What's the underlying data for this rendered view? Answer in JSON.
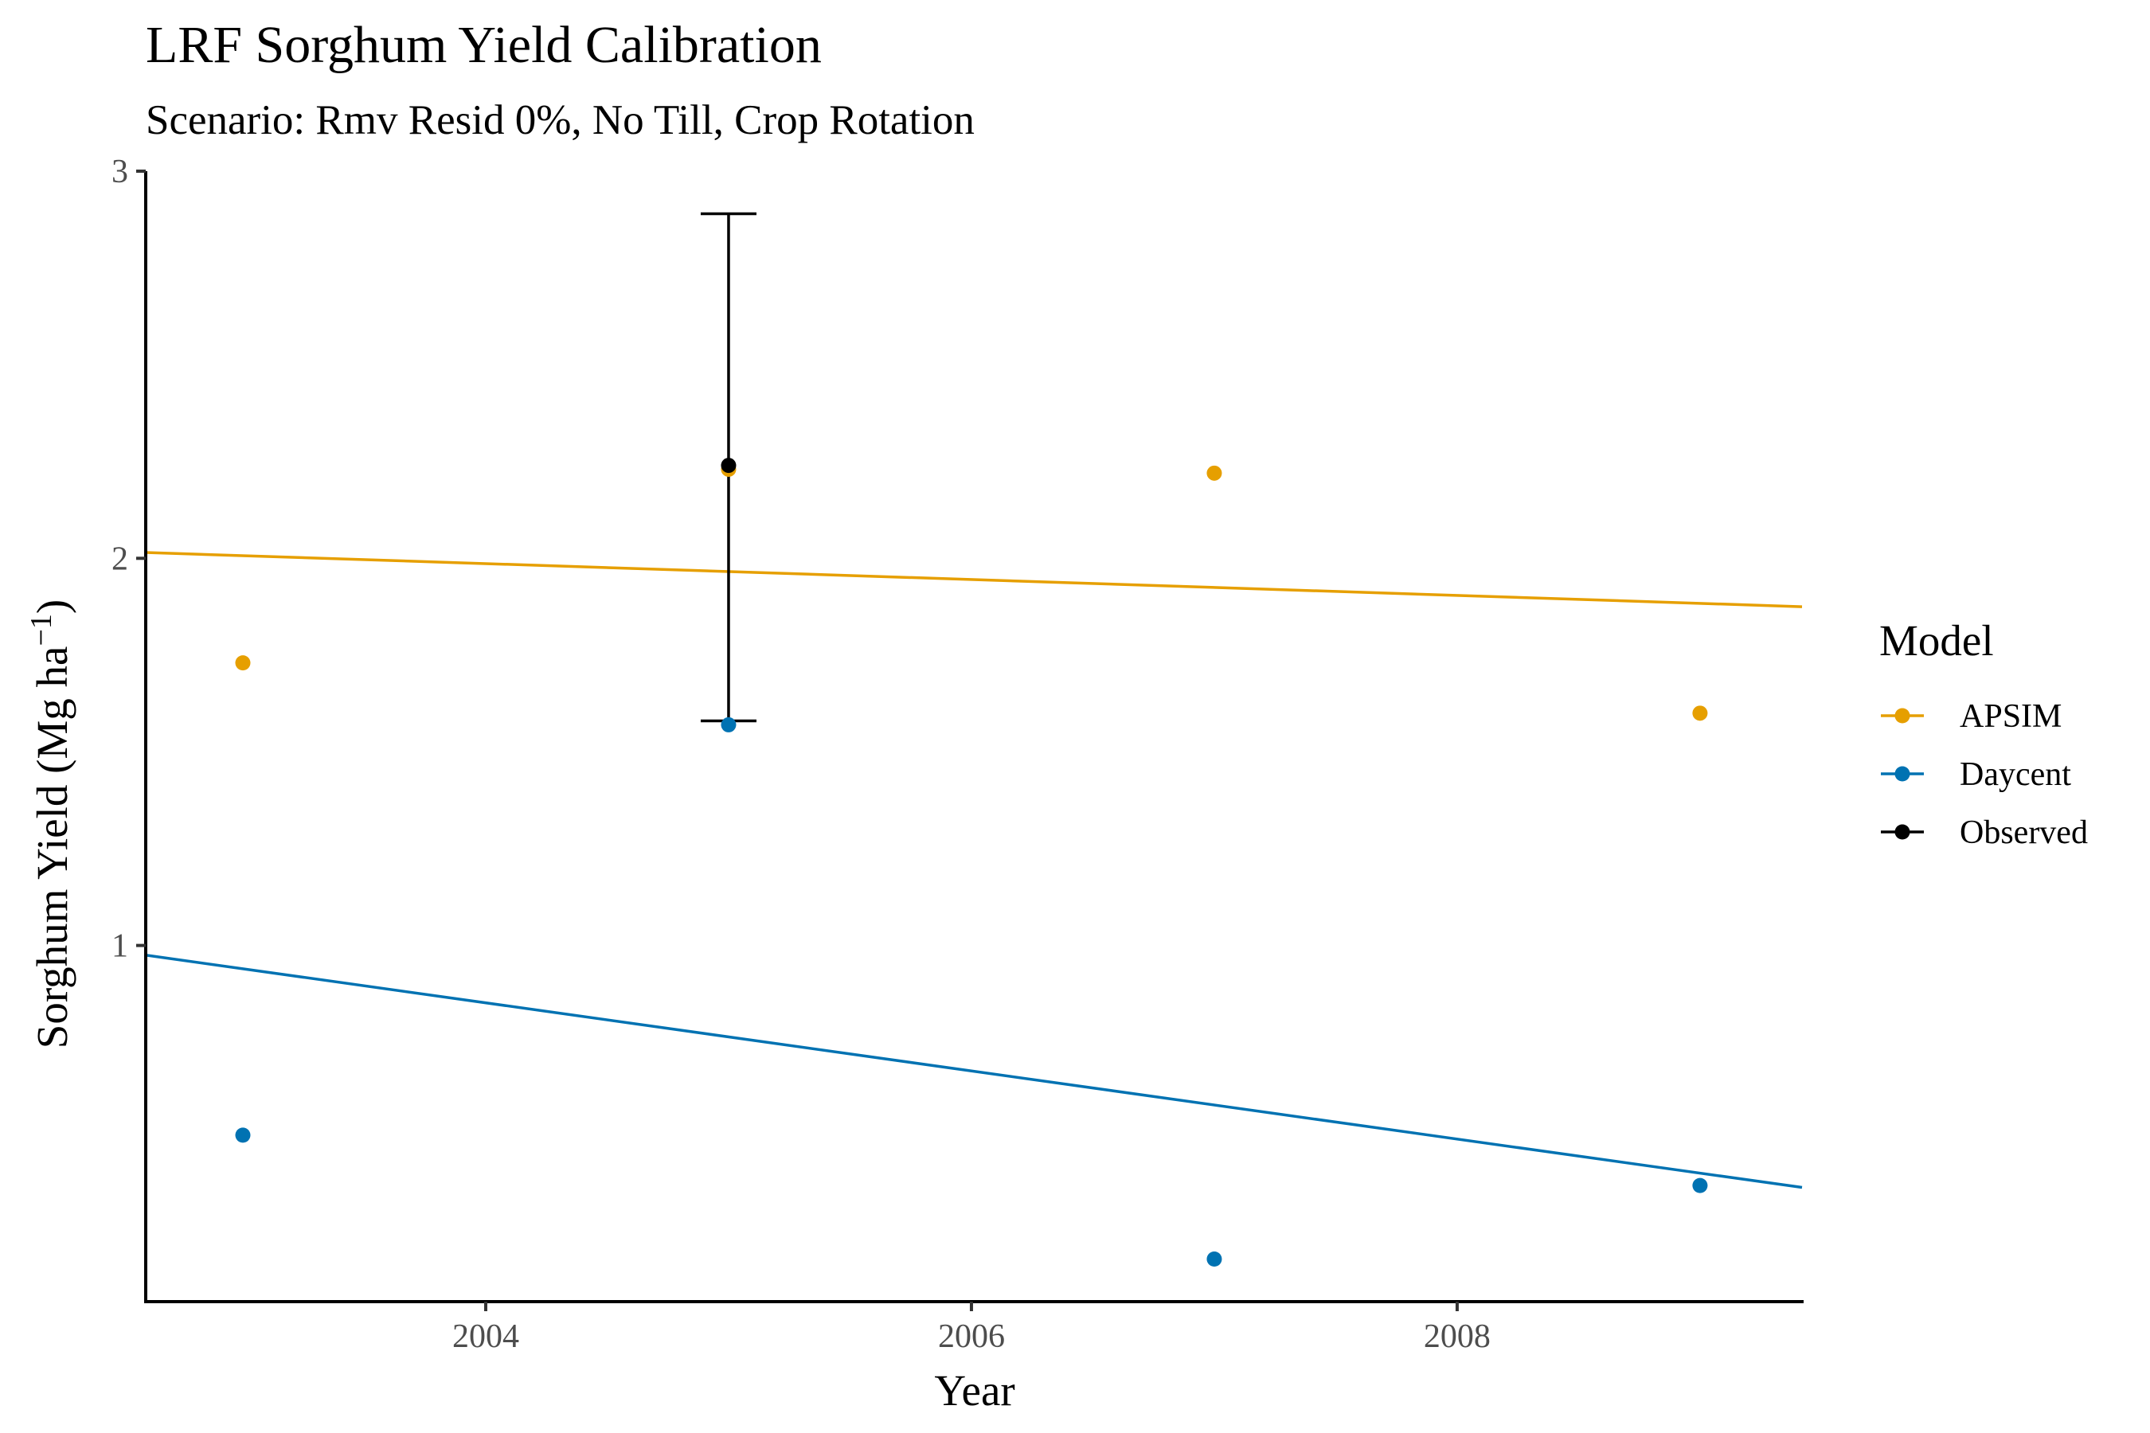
{
  "chart_data": {
    "type": "scatter",
    "title": "LRF Sorghum Yield Calibration",
    "subtitle": "Scenario: Rmv Resid 0%, No Till, Crop Rotation",
    "xlabel": "Year",
    "ylabel_main": "Sorghum Yield (Mg ha",
    "ylabel_sup": "−1",
    "ylabel_close": ")",
    "xlim": [
      2002.6,
      2009.42
    ],
    "ylim": [
      0.08,
      3.0
    ],
    "x_ticks": [
      2004,
      2006,
      2008
    ],
    "x_tick_labels": [
      "2004",
      "2006",
      "2008"
    ],
    "y_ticks": [
      1,
      2,
      3
    ],
    "y_tick_labels": [
      "1",
      "2",
      "3"
    ],
    "grid": false,
    "legend_position": "right",
    "legend_title": "Model",
    "series": [
      {
        "name": "APSIM",
        "color": "#E69F00",
        "x": [
          2003,
          2005,
          2007,
          2009
        ],
        "y": [
          1.73,
          2.23,
          2.22,
          1.6
        ],
        "trend": {
          "x": [
            2002.6,
            2009.42
          ],
          "y": [
            2.015,
            1.875
          ]
        }
      },
      {
        "name": "Daycent",
        "color": "#0072B2",
        "x": [
          2003,
          2005,
          2007,
          2009
        ],
        "y": [
          0.51,
          1.57,
          0.19,
          0.38
        ],
        "trend": {
          "x": [
            2002.6,
            2009.42
          ],
          "y": [
            0.975,
            0.375
          ]
        }
      },
      {
        "name": "Observed",
        "color": "#000000",
        "x": [
          2005
        ],
        "y": [
          2.24
        ],
        "error": [
          {
            "x": 2005,
            "low": 1.58,
            "high": 2.89
          }
        ]
      }
    ]
  }
}
